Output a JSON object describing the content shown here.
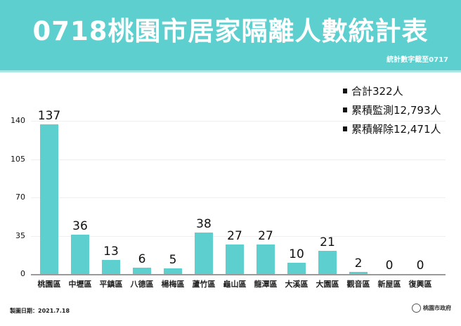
{
  "header": {
    "title": "0718桃園市居家隔離人數統計表",
    "subtitle": "統計數字截至0717",
    "color": "#5ecfcf"
  },
  "summary": [
    {
      "label": "合計322人"
    },
    {
      "label": "累積監測12,793人"
    },
    {
      "label": "累積解除12,471人"
    }
  ],
  "footer": {
    "date_label": "製圖日期：2021.7.18",
    "logo_text": "桃園市政府"
  },
  "chart_data": {
    "type": "bar",
    "title": "0718桃園市居家隔離人數統計表",
    "xlabel": "",
    "ylabel": "",
    "categories": [
      "桃園區",
      "中壢區",
      "平鎮區",
      "八德區",
      "楊梅區",
      "蘆竹區",
      "龜山區",
      "龍潭區",
      "大溪區",
      "大園區",
      "觀音區",
      "新屋區",
      "復興區"
    ],
    "values": [
      137,
      36,
      13,
      6,
      5,
      38,
      27,
      27,
      10,
      21,
      2,
      0,
      0
    ],
    "yticks": [
      0,
      35,
      70,
      105,
      140
    ],
    "ylim": [
      0,
      140
    ],
    "grid": true,
    "bar_color": "#5ecfcf",
    "data_labels": true
  }
}
